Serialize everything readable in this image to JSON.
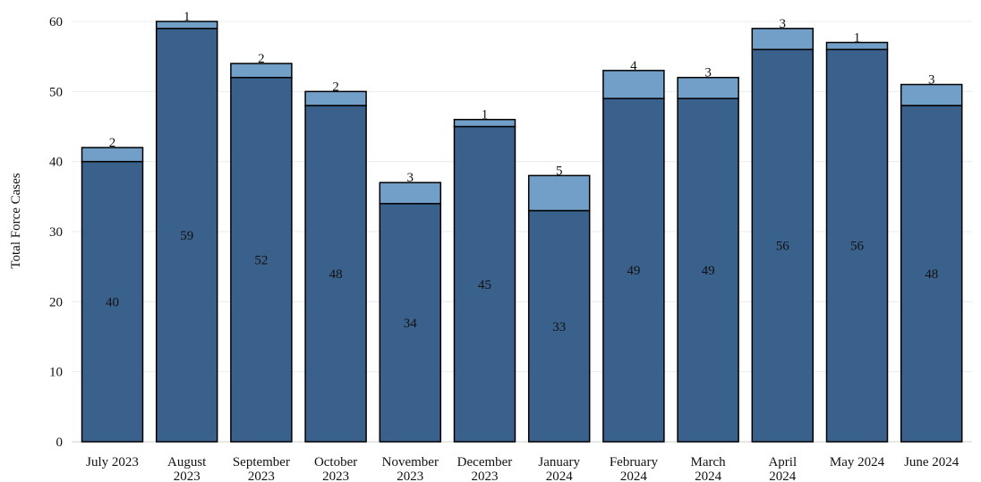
{
  "chart_data": {
    "type": "bar",
    "stacked": true,
    "title": "",
    "xlabel": "",
    "ylabel": "Total Force Cases",
    "ylim": [
      0,
      60
    ],
    "yticks": [
      0,
      10,
      20,
      30,
      40,
      50,
      60
    ],
    "grid": true,
    "legend": "none",
    "categories": [
      "July 2023",
      "August 2023",
      "September 2023",
      "October 2023",
      "November 2023",
      "December 2023",
      "January 2024",
      "February 2024",
      "March 2024",
      "April 2024",
      "May 2024",
      "June 2024"
    ],
    "category_lines": [
      [
        "July 2023"
      ],
      [
        "August",
        "2023"
      ],
      [
        "September",
        "2023"
      ],
      [
        "October",
        "2023"
      ],
      [
        "November",
        "2023"
      ],
      [
        "December",
        "2023"
      ],
      [
        "January",
        "2024"
      ],
      [
        "February",
        "2024"
      ],
      [
        "March",
        "2024"
      ],
      [
        "April",
        "2024"
      ],
      [
        "May 2024"
      ],
      [
        "June 2024"
      ]
    ],
    "series": [
      {
        "values": [
          40,
          59,
          52,
          48,
          34,
          45,
          33,
          49,
          49,
          56,
          56,
          48
        ],
        "color": "#3a618b"
      },
      {
        "values": [
          2,
          1,
          2,
          2,
          3,
          1,
          5,
          4,
          3,
          3,
          1,
          3
        ],
        "color": "#729fc8"
      }
    ]
  }
}
